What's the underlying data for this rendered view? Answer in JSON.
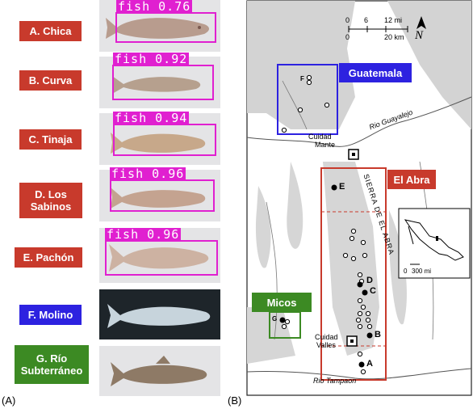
{
  "panel_a": {
    "caption": "(A)",
    "populations": [
      {
        "label": "A. Chica",
        "score": "fish 0.76"
      },
      {
        "label": "B. Curva",
        "score": "fish 0.92"
      },
      {
        "label": "C. Tinaja",
        "score": "fish 0.94"
      },
      {
        "label": "D. Los Sabinos",
        "score": "fish 0.96"
      },
      {
        "label": "E. Pachón",
        "score": "fish 0.96"
      },
      {
        "label": "F. Molino",
        "score": ""
      },
      {
        "label": "G. Río Subterráneo",
        "score": ""
      }
    ]
  },
  "panel_b": {
    "caption": "(B)",
    "scale": {
      "mi_labels": [
        "0",
        "6",
        "12 mi"
      ],
      "km_labels": [
        "0",
        "20 km"
      ]
    },
    "north": "N",
    "regions": {
      "guatemala": "Guatemala",
      "el_abra": "El Abra",
      "micos": "Micos"
    },
    "towns": {
      "mante_1": "Cuidad",
      "mante_2": "Mante",
      "valles_1": "Cuidad",
      "valles_2": "Valles"
    },
    "rivers": {
      "guayalejo": "Rio Guayalejo",
      "tampaon": "Rio Tampaon"
    },
    "range": "SIERRA DE EL ABRA",
    "site_letters": [
      "A",
      "B",
      "C",
      "D",
      "E",
      "F",
      "G"
    ],
    "inset": {
      "scale_0": "0",
      "scale_300": "300 mi"
    }
  },
  "colors": {
    "red": "#c83a2c",
    "blue": "#2d22e0",
    "green": "#3c8a23",
    "detection": "#e020d0"
  }
}
